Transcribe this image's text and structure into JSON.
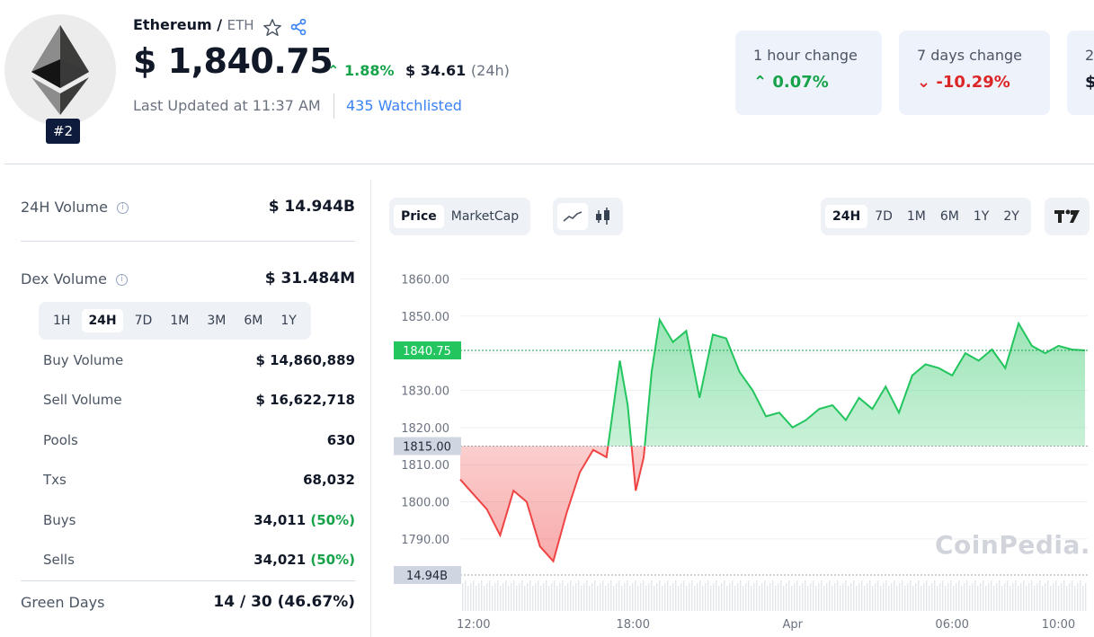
{
  "coin": {
    "name": "Ethereum",
    "slash": "/",
    "symbol": "ETH",
    "rank": "#2",
    "price": "$ 1,840.75",
    "change_pct": "1.88%",
    "change_abs": "$ 34.61",
    "change_period": "(24h)",
    "last_updated": "Last Updated at 11:37 AM",
    "watchlisted": "435 Watchlisted"
  },
  "cards": [
    {
      "label": "1 hour change",
      "value": "0.07%",
      "direction": "up"
    },
    {
      "label": "7 days change",
      "value": "-10.29%",
      "direction": "down"
    },
    {
      "label": "2",
      "value": "$",
      "direction": "none"
    }
  ],
  "stats": {
    "volume_label": "24H Volume",
    "volume_value": "$ 14.944B",
    "dex_label": "Dex Volume",
    "dex_value": "$ 31.484M",
    "tabs": [
      "1H",
      "24H",
      "7D",
      "1M",
      "3M",
      "6M",
      "1Y"
    ],
    "active_tab": "24H",
    "rows": [
      {
        "label": "Buy Volume",
        "value": "$ 14,860,889",
        "pct": ""
      },
      {
        "label": "Sell Volume",
        "value": "$ 16,622,718",
        "pct": ""
      },
      {
        "label": "Pools",
        "value": "630",
        "pct": ""
      },
      {
        "label": "Txs",
        "value": "68,032",
        "pct": ""
      },
      {
        "label": "Buys",
        "value": "34,011",
        "pct": "(50%)"
      },
      {
        "label": "Sells",
        "value": "34,021",
        "pct": "(50%)"
      }
    ],
    "green_days_label": "Green Days",
    "green_days_value": "14 / 30 (46.67%)"
  },
  "chart_controls": {
    "metric_options": [
      "Price",
      "MarketCap"
    ],
    "active_metric": "Price",
    "chart_type_icons": [
      "line-chart-icon",
      "candlestick-icon"
    ],
    "ranges": [
      "24H",
      "7D",
      "1M",
      "6M",
      "1Y",
      "2Y"
    ],
    "active_range": "24H",
    "tradingview_icon": "tradingview-icon"
  },
  "watermark": "CoinPedia.",
  "colors": {
    "up": "#16a34a",
    "down": "#dc2626",
    "accent": "#3b82f6",
    "card_bg": "#eef2fb"
  },
  "chart_data": {
    "type": "area",
    "baseline": 1815.0,
    "current_price": "1840.75",
    "baseline_label": "1815.00",
    "volume_label": "14.94B",
    "ylim": [
      1782,
      1863
    ],
    "y_ticks": [
      "1860.00",
      "1850.00",
      "1840.00",
      "1830.00",
      "1820.00",
      "1810.00",
      "1800.00",
      "1790.00"
    ],
    "y_tick_values": [
      1860,
      1850,
      1840,
      1830,
      1820,
      1810,
      1800,
      1790
    ],
    "x_ticks": [
      "12:00",
      "18:00",
      "Apr",
      "06:00",
      "10:00"
    ],
    "x_tick_hours": [
      0.5,
      6.5,
      12.5,
      18.5,
      22.5
    ],
    "xlim_hours": [
      0,
      23.6
    ],
    "x_hours": [
      0,
      0.5,
      1.0,
      1.5,
      2.0,
      2.5,
      3.0,
      3.5,
      4.0,
      4.5,
      5.0,
      5.5,
      6.0,
      6.3,
      6.6,
      6.9,
      7.2,
      7.5,
      8.0,
      8.5,
      9.0,
      9.5,
      10.0,
      10.5,
      11.0,
      11.5,
      12.0,
      12.5,
      13.0,
      13.5,
      14.0,
      14.5,
      15.0,
      15.5,
      16.0,
      16.5,
      17.0,
      17.5,
      18.0,
      18.5,
      19.0,
      19.5,
      20.0,
      20.5,
      21.0,
      21.5,
      22.0,
      22.5,
      23.0,
      23.5
    ],
    "price": [
      1806,
      1802,
      1798,
      1791,
      1803,
      1800,
      1788,
      1784,
      1797,
      1808,
      1814,
      1812,
      1838,
      1826,
      1803,
      1812,
      1835,
      1849,
      1843,
      1846,
      1828,
      1845,
      1844,
      1835,
      1830,
      1823,
      1824,
      1820,
      1822,
      1825,
      1826,
      1822,
      1828,
      1825,
      1831,
      1824,
      1834,
      1837,
      1836,
      1834,
      1840,
      1838,
      1841,
      1836,
      1848,
      1842,
      1840,
      1842,
      1841,
      1840.75
    ]
  }
}
